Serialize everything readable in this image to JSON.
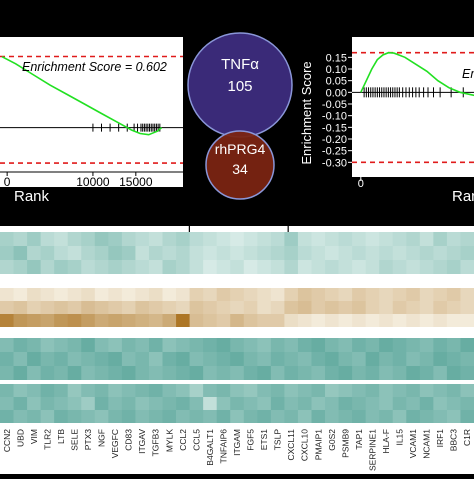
{
  "chart_data": [
    {
      "type": "line",
      "name": "GSEA left",
      "annotation": "Enrichment Score = 0.602",
      "xlabel": "Rank",
      "x_ticks": [
        0,
        10000,
        15000
      ],
      "x_tick_labels": [
        "0",
        "10000",
        "15000"
      ],
      "xlim": [
        -600,
        20500
      ],
      "ylim": [
        -0.35,
        0.75
      ],
      "reference_lines": [
        0.602,
        -0.3
      ],
      "curve": [
        [
          -600,
          0.6
        ],
        [
          1000,
          0.54
        ],
        [
          3000,
          0.45
        ],
        [
          5000,
          0.36
        ],
        [
          7000,
          0.28
        ],
        [
          9000,
          0.2
        ],
        [
          11000,
          0.12
        ],
        [
          13000,
          0.04
        ],
        [
          14500,
          -0.02
        ],
        [
          15500,
          -0.05
        ],
        [
          16500,
          -0.06
        ],
        [
          17500,
          -0.03
        ],
        [
          18000,
          0.0
        ]
      ],
      "hit_ranks": [
        10000,
        11000,
        12000,
        13000,
        14000,
        14800,
        15200,
        15600,
        15800,
        16000,
        16200,
        16400,
        16600,
        16800,
        17000,
        17200,
        17400,
        17600,
        17800
      ]
    },
    {
      "type": "line",
      "name": "GSEA right",
      "ylabel": "Enrichment Score",
      "annotation": "Enrichment Score",
      "xlabel": "Rank",
      "x_ticks": [
        0
      ],
      "x_tick_labels": [
        "0"
      ],
      "xlim": [
        -800,
        12000
      ],
      "ylim": [
        -0.35,
        0.22
      ],
      "y_ticks": [
        0.15,
        0.1,
        0.05,
        0.0,
        -0.05,
        -0.1,
        -0.15,
        -0.2,
        -0.25,
        -0.3
      ],
      "y_tick_labels": [
        "0.15",
        "0.10",
        "0.05",
        "0.00",
        "-0.05",
        "-0.10",
        "-0.15",
        "-0.20",
        "-0.25",
        "-0.30"
      ],
      "reference_lines": [
        0.17,
        -0.3
      ],
      "curve": [
        [
          0,
          0.0
        ],
        [
          200,
          0.02
        ],
        [
          500,
          0.05
        ],
        [
          1000,
          0.1
        ],
        [
          1500,
          0.14
        ],
        [
          2000,
          0.16
        ],
        [
          2500,
          0.17
        ],
        [
          3000,
          0.168
        ],
        [
          4000,
          0.15
        ],
        [
          5000,
          0.12
        ],
        [
          6000,
          0.09
        ],
        [
          7000,
          0.05
        ],
        [
          8000,
          0.02
        ],
        [
          9000,
          0.0
        ],
        [
          10000,
          -0.01
        ],
        [
          11000,
          -0.02
        ]
      ],
      "hit_ranks": [
        300,
        500,
        700,
        900,
        1100,
        1300,
        1500,
        1700,
        1900,
        2100,
        2300,
        2500,
        2700,
        2900,
        3100,
        3300,
        3500,
        3800,
        4100,
        4400,
        4700,
        5000,
        5300,
        5700,
        6100,
        6600,
        7200,
        8200,
        9300,
        10500
      ]
    },
    {
      "type": "venn",
      "sets": [
        {
          "label": "TNFα",
          "count": "105",
          "color": "#3a2a78"
        },
        {
          "label": "rhPRG4",
          "count": "34",
          "color": "#7a2412"
        }
      ]
    },
    {
      "type": "heatmap",
      "genes": [
        "CCN2",
        "UBD",
        "VIM",
        "TLR2",
        "LTB",
        "SELE",
        "PTX3",
        "NGF",
        "VEGFC",
        "CD83",
        "ITGAV",
        "TGFB3",
        "MYLK",
        "CCL2",
        "CCL5",
        "B4GALT1",
        "TNFAIP6",
        "ITGAM",
        "FGF5",
        "ETS1",
        "TSLP",
        "CXCL11",
        "CXCL10",
        "PMAIP1",
        "G0S2",
        "PSMB9",
        "TAP1",
        "SERPINE1",
        "HLA-F",
        "IL15",
        "VCAM1",
        "NCAM1",
        "IRF1",
        "BBC3",
        "C1R"
      ],
      "markers": [
        "CCL5",
        "CXCL11"
      ],
      "blocks": [
        {
          "palette": "teal",
          "rows": [
            [
              0.35,
              0.3,
              0.4,
              0.25,
              0.2,
              0.3,
              0.35,
              0.45,
              0.4,
              0.3,
              0.25,
              0.2,
              0.3,
              0.35,
              0.25,
              0.2,
              0.15,
              0.1,
              0.15,
              0.2,
              0.25,
              0.4,
              0.2,
              0.15,
              0.2,
              0.25,
              0.2,
              0.15,
              0.2,
              0.25,
              0.3,
              0.2,
              0.35,
              0.25,
              0.3
            ],
            [
              0.4,
              0.5,
              0.3,
              0.35,
              0.25,
              0.2,
              0.3,
              0.35,
              0.45,
              0.4,
              0.2,
              0.3,
              0.25,
              0.3,
              0.2,
              0.15,
              0.2,
              0.15,
              0.2,
              0.25,
              0.3,
              0.35,
              0.25,
              0.2,
              0.15,
              0.2,
              0.25,
              0.2,
              0.25,
              0.2,
              0.25,
              0.3,
              0.25,
              0.3,
              0.35
            ],
            [
              0.3,
              0.35,
              0.45,
              0.3,
              0.4,
              0.35,
              0.25,
              0.3,
              0.35,
              0.3,
              0.25,
              0.2,
              0.35,
              0.3,
              0.2,
              0.1,
              0.15,
              0.2,
              0.1,
              0.15,
              0.2,
              0.3,
              0.15,
              0.2,
              0.25,
              0.2,
              0.15,
              0.2,
              0.3,
              0.25,
              0.2,
              0.25,
              0.3,
              0.35,
              0.25
            ]
          ]
        },
        {
          "palette": "brown",
          "rows": [
            [
              0.1,
              0.05,
              0.15,
              0.1,
              0.05,
              0.1,
              0.15,
              0.05,
              0.1,
              0.05,
              0.1,
              0.15,
              0.05,
              0.1,
              0.25,
              0.2,
              0.3,
              0.25,
              0.2,
              0.15,
              0.1,
              0.25,
              0.35,
              0.3,
              0.25,
              0.2,
              0.3,
              0.25,
              0.2,
              0.25,
              0.3,
              0.2,
              0.25,
              0.3,
              0.2
            ],
            [
              0.3,
              0.35,
              0.25,
              0.3,
              0.35,
              0.3,
              0.4,
              0.35,
              0.3,
              0.25,
              0.35,
              0.3,
              0.25,
              0.2,
              0.35,
              0.3,
              0.25,
              0.2,
              0.25,
              0.15,
              0.2,
              0.35,
              0.4,
              0.3,
              0.35,
              0.3,
              0.35,
              0.25,
              0.2,
              0.3,
              0.25,
              0.2,
              0.3,
              0.25,
              0.2
            ],
            [
              0.85,
              0.7,
              0.65,
              0.6,
              0.7,
              0.75,
              0.65,
              0.55,
              0.6,
              0.55,
              0.5,
              0.45,
              0.55,
              0.95,
              0.4,
              0.35,
              0.3,
              0.45,
              0.35,
              0.3,
              0.3,
              0.15,
              0.1,
              0.05,
              0.1,
              0.05,
              0.1,
              0.05,
              0.1,
              0.05,
              0.1,
              0.05,
              0.1,
              0.05,
              0.05
            ]
          ]
        },
        {
          "palette": "teal",
          "rows": [
            [
              0.55,
              0.65,
              0.6,
              0.5,
              0.55,
              0.6,
              0.7,
              0.55,
              0.5,
              0.6,
              0.55,
              0.65,
              0.5,
              0.55,
              0.6,
              0.65,
              0.7,
              0.6,
              0.55,
              0.5,
              0.6,
              0.55,
              0.65,
              0.7,
              0.6,
              0.55,
              0.65,
              0.6,
              0.7,
              0.65,
              0.6,
              0.55,
              0.65,
              0.6,
              0.7
            ],
            [
              0.65,
              0.55,
              0.7,
              0.6,
              0.65,
              0.55,
              0.6,
              0.65,
              0.7,
              0.55,
              0.6,
              0.5,
              0.65,
              0.7,
              0.55,
              0.6,
              0.65,
              0.7,
              0.6,
              0.55,
              0.65,
              0.6,
              0.55,
              0.65,
              0.7,
              0.6,
              0.55,
              0.7,
              0.6,
              0.65,
              0.55,
              0.6,
              0.7,
              0.65,
              0.6
            ],
            [
              0.6,
              0.7,
              0.55,
              0.65,
              0.6,
              0.7,
              0.55,
              0.6,
              0.65,
              0.7,
              0.6,
              0.55,
              0.6,
              0.65,
              0.7,
              0.55,
              0.6,
              0.55,
              0.65,
              0.7,
              0.55,
              0.65,
              0.6,
              0.55,
              0.65,
              0.7,
              0.6,
              0.65,
              0.55,
              0.6,
              0.7,
              0.65,
              0.55,
              0.7,
              0.65
            ]
          ]
        },
        {
          "palette": "teal",
          "rows": [
            [
              0.6,
              0.5,
              0.55,
              0.65,
              0.6,
              0.45,
              0.55,
              0.6,
              0.5,
              0.55,
              0.6,
              0.65,
              0.55,
              0.5,
              0.35,
              0.55,
              0.6,
              0.5,
              0.45,
              0.55,
              0.6,
              0.5,
              0.55,
              0.6,
              0.45,
              0.5,
              0.55,
              0.6,
              0.5,
              0.55,
              0.6,
              0.5,
              0.55,
              0.6,
              0.5
            ],
            [
              0.55,
              0.65,
              0.5,
              0.6,
              0.55,
              0.5,
              0.4,
              0.65,
              0.55,
              0.6,
              0.5,
              0.55,
              0.6,
              0.65,
              0.55,
              0.2,
              0.5,
              0.6,
              0.55,
              0.5,
              0.65,
              0.55,
              0.6,
              0.5,
              0.55,
              0.65,
              0.6,
              0.55,
              0.5,
              0.6,
              0.55,
              0.65,
              0.5,
              0.55,
              0.6
            ],
            [
              0.65,
              0.55,
              0.6,
              0.5,
              0.65,
              0.6,
              0.55,
              0.5,
              0.6,
              0.65,
              0.55,
              0.6,
              0.65,
              0.55,
              0.6,
              0.55,
              0.65,
              0.5,
              0.6,
              0.65,
              0.55,
              0.6,
              0.5,
              0.65,
              0.55,
              0.6,
              0.65,
              0.55,
              0.6,
              0.5,
              0.65,
              0.6,
              0.55,
              0.5,
              0.65
            ]
          ]
        }
      ]
    }
  ],
  "colors": {
    "teal_light": "#e8f4f1",
    "teal_dark": "#2f8f80",
    "brown_light": "#f7f1e4",
    "brown_dark": "#a9701c",
    "curve": "#22e022",
    "ref_line": "#e01b1b"
  }
}
